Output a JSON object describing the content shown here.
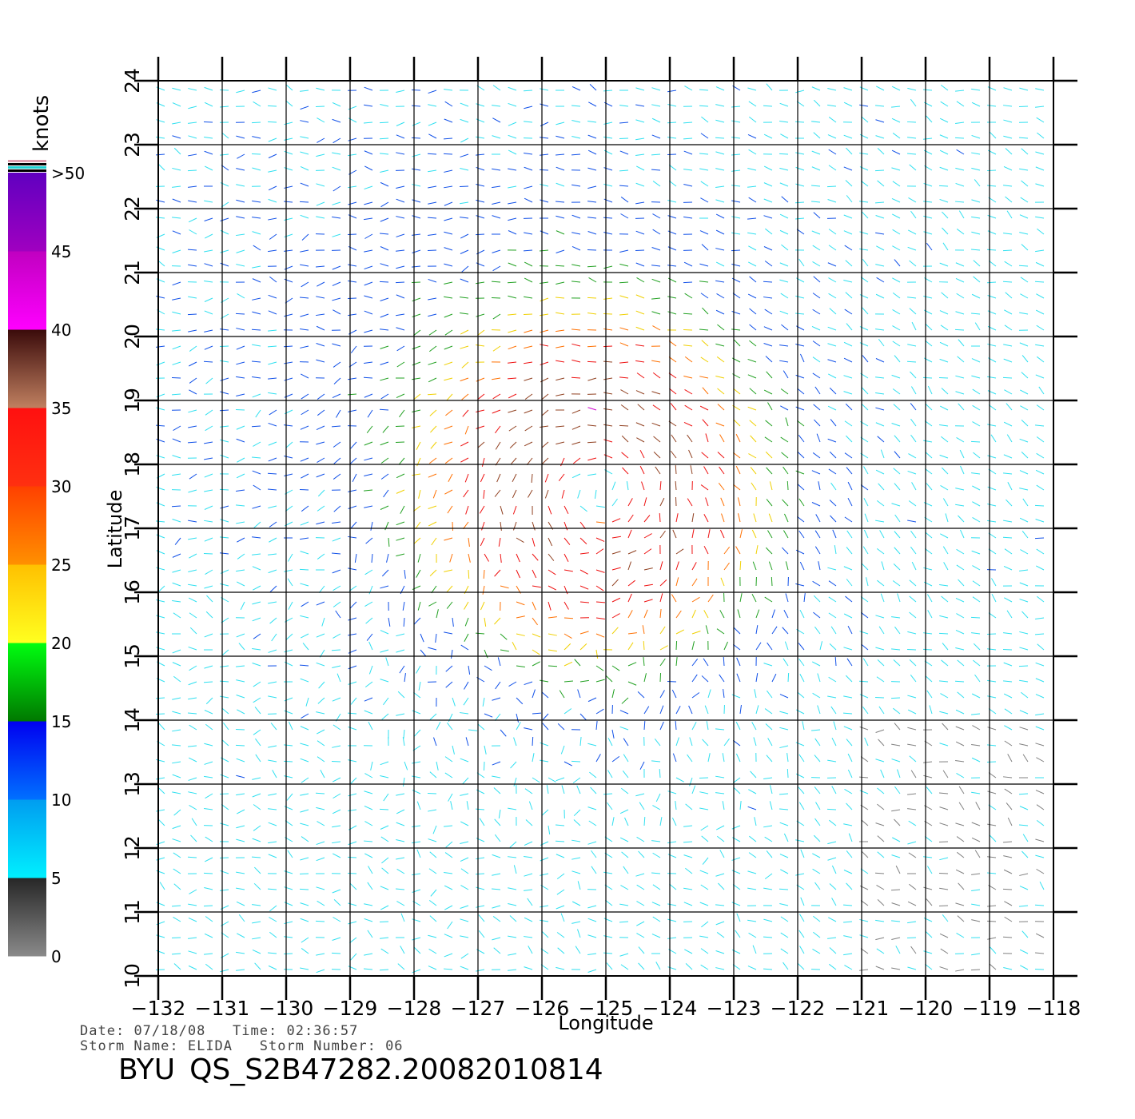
{
  "chart_data": {
    "type": "scatter",
    "plot_kind": "wind vector field",
    "xlabel": "Longitude",
    "ylabel": "Latitude",
    "xlim": [
      -132,
      -118
    ],
    "ylim": [
      10,
      24
    ],
    "x_ticks": [
      -132,
      -131,
      -130,
      -129,
      -128,
      -127,
      -126,
      -125,
      -124,
      -123,
      -122,
      -121,
      -120,
      -119,
      -118
    ],
    "y_ticks": [
      10,
      11,
      12,
      13,
      14,
      15,
      16,
      17,
      18,
      19,
      20,
      21,
      22,
      23,
      24
    ],
    "x_tick_labels": [
      "−132",
      "−131",
      "−130",
      "−129",
      "−128",
      "−127",
      "−126",
      "−125",
      "−124",
      "−123",
      "−122",
      "−121",
      "−120",
      "−119",
      "−118"
    ],
    "y_tick_labels": [
      "10",
      "11",
      "12",
      "13",
      "14",
      "15",
      "16",
      "17",
      "18",
      "19",
      "20",
      "21",
      "22",
      "23",
      "24"
    ],
    "grid": true,
    "storm_center": {
      "lon": -125.1,
      "lat": 17.6
    },
    "colorbar": {
      "title": "knots",
      "placement": "left",
      "tick_labels": [
        "0",
        "5",
        "10",
        "15",
        "20",
        "25",
        "30",
        "35",
        "40",
        "45",
        ">50"
      ],
      "bands": [
        {
          "from": 0,
          "to": 5,
          "colors": [
            "#8a8a8a",
            "#262626"
          ]
        },
        {
          "from": 5,
          "to": 10,
          "colors": [
            "#00f0ff",
            "#009cf0"
          ]
        },
        {
          "from": 10,
          "to": 15,
          "colors": [
            "#0070ff",
            "#0000f0"
          ]
        },
        {
          "from": 15,
          "to": 20,
          "colors": [
            "#007800",
            "#00ff10"
          ]
        },
        {
          "from": 20,
          "to": 25,
          "colors": [
            "#ffff20",
            "#ffc000"
          ]
        },
        {
          "from": 25,
          "to": 30,
          "colors": [
            "#ff9000",
            "#ff4000"
          ]
        },
        {
          "from": 30,
          "to": 35,
          "colors": [
            "#ff3010",
            "#ff1010"
          ]
        },
        {
          "from": 35,
          "to": 40,
          "colors": [
            "#c08060",
            "#3a0a0a"
          ]
        },
        {
          "from": 40,
          "to": 45,
          "colors": [
            "#ff00ff",
            "#c000c0"
          ]
        },
        {
          "from": 45,
          "to": 50,
          "colors": [
            "#a000c0",
            "#6000c0"
          ]
        }
      ],
      "top_stripes": [
        "#e0a0b0",
        "#000000",
        "#20d0d0",
        "#000000"
      ]
    },
    "speed_colors": [
      "#808080",
      "#30e0f0",
      "#1050e8",
      "#20a020",
      "#f0d000",
      "#ff7000",
      "#ee1010",
      "#904020",
      "#d000d0",
      "#7000c0"
    ]
  },
  "footer": {
    "date_label": "Date:",
    "date_value": "07/18/08",
    "time_label": "Time:",
    "time_value": "02:36:57",
    "storm_name_label": "Storm Name:",
    "storm_name_value": "ELIDA",
    "storm_number_label": "Storm Number:",
    "storm_number_value": "06",
    "source_prefix": "BYU",
    "file_name": "QS_S2B47282.20082010814"
  }
}
